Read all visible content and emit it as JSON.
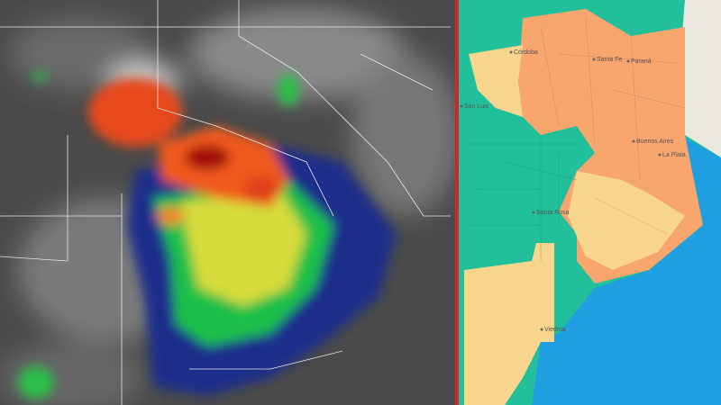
{
  "map": {
    "labels": [
      "Córdoba",
      "San Luis",
      "Santa Fe",
      "Paraná",
      "Buenos Aires",
      "La Plata",
      "Santa Rosa",
      "Viedma"
    ]
  }
}
